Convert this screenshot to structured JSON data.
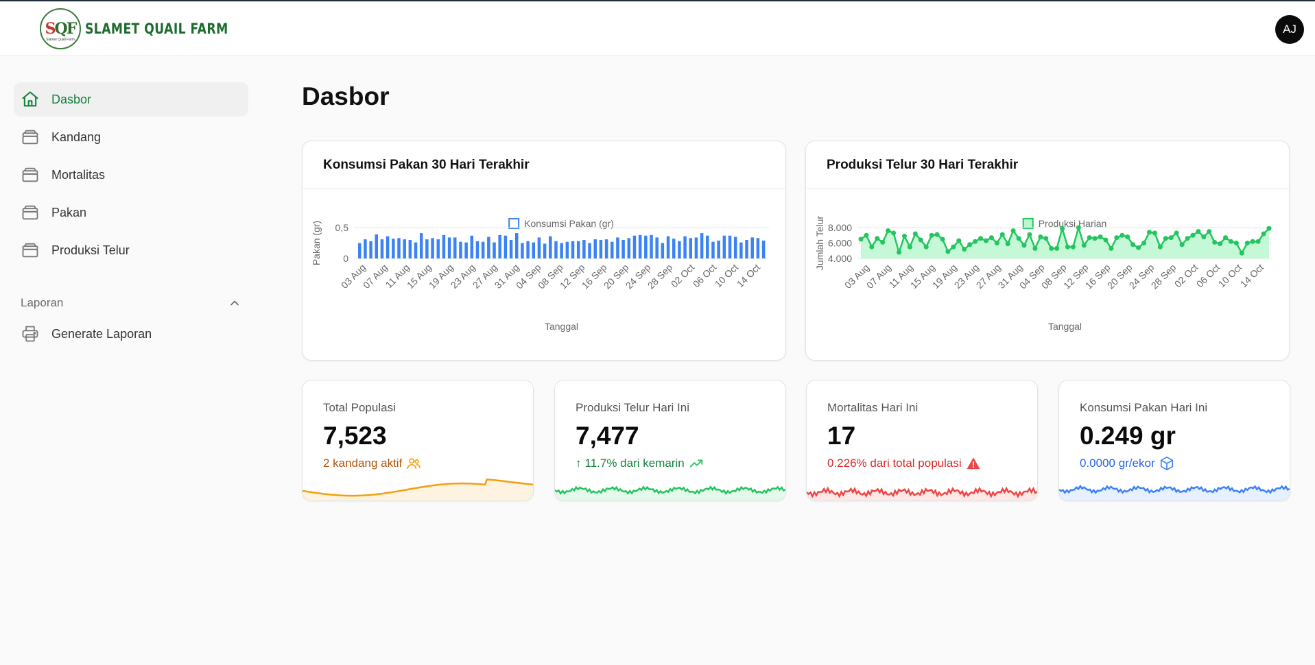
{
  "app": {
    "name": "SLAMET QUAIL FARM",
    "logo_initials": "SQF",
    "logo_tagline": "Slamet Quail Farm"
  },
  "user": {
    "initials": "AJ"
  },
  "sidebar": {
    "items": [
      {
        "label": "Dasbor",
        "icon": "home-icon",
        "active": true
      },
      {
        "label": "Kandang",
        "icon": "cage-icon"
      },
      {
        "label": "Mortalitas",
        "icon": "cage-icon"
      },
      {
        "label": "Pakan",
        "icon": "cage-icon"
      },
      {
        "label": "Produksi Telur",
        "icon": "cage-icon"
      }
    ],
    "section": {
      "label": "Laporan",
      "expanded": true
    },
    "report_items": [
      {
        "label": "Generate Laporan",
        "icon": "printer-icon"
      }
    ]
  },
  "page": {
    "title": "Dasbor"
  },
  "colors": {
    "accent_green": "#15803d",
    "blue": "#3b82f6",
    "green": "#22c55e",
    "orange": "#f59e0b",
    "red": "#ef4444"
  },
  "chart_data": [
    {
      "type": "bar",
      "title": "Konsumsi Pakan 30 Hari Terakhir",
      "legend": "Konsumsi Pakan (gr)",
      "legend_position": "top",
      "xlabel": "Tanggal",
      "ylabel": "Pakan (gr)",
      "ylim": [
        0,
        0.5
      ],
      "yticks": [
        "0",
        "0,5"
      ],
      "xticks": [
        "03 Aug",
        "07 Aug",
        "11 Aug",
        "15 Aug",
        "19 Aug",
        "23 Aug",
        "27 Aug",
        "31 Aug",
        "04 Sep",
        "08 Sep",
        "12 Sep",
        "16 Sep",
        "20 Sep",
        "24 Sep",
        "28 Sep",
        "02 Oct",
        "06 Oct",
        "10 Oct",
        "14 Oct"
      ],
      "color": "#3b82f6",
      "values": [
        0.25,
        0.31,
        0.28,
        0.39,
        0.31,
        0.36,
        0.32,
        0.33,
        0.31,
        0.3,
        0.26,
        0.41,
        0.31,
        0.33,
        0.31,
        0.38,
        0.34,
        0.34,
        0.27,
        0.26,
        0.37,
        0.28,
        0.27,
        0.35,
        0.26,
        0.38,
        0.37,
        0.3,
        0.41,
        0.25,
        0.28,
        0.26,
        0.34,
        0.24,
        0.36,
        0.28,
        0.25,
        0.27,
        0.28,
        0.28,
        0.3,
        0.25,
        0.31,
        0.3,
        0.31,
        0.27,
        0.34,
        0.3,
        0.33,
        0.37,
        0.38,
        0.37,
        0.38,
        0.34,
        0.25,
        0.36,
        0.32,
        0.28,
        0.36,
        0.33,
        0.34,
        0.41,
        0.37,
        0.27,
        0.29,
        0.37,
        0.37,
        0.35,
        0.26,
        0.3,
        0.34,
        0.33,
        0.29
      ]
    },
    {
      "type": "area",
      "title": "Produksi Telur 30 Hari Terakhir",
      "legend": "Produksi Harian",
      "legend_position": "top",
      "xlabel": "Tanggal",
      "ylabel": "Jumlah Telur",
      "ylim": [
        4000,
        8000
      ],
      "yticks": [
        "4.000",
        "6.000",
        "8.000"
      ],
      "xticks": [
        "03 Aug",
        "07 Aug",
        "11 Aug",
        "15 Aug",
        "19 Aug",
        "23 Aug",
        "27 Aug",
        "31 Aug",
        "04 Sep",
        "08 Sep",
        "12 Sep",
        "16 Sep",
        "20 Sep",
        "24 Sep",
        "28 Sep",
        "02 Oct",
        "06 Oct",
        "10 Oct",
        "14 Oct"
      ],
      "color": "#22c55e",
      "values": [
        6500,
        7000,
        5500,
        6600,
        6100,
        7600,
        7300,
        4800,
        6900,
        5500,
        7200,
        6400,
        5500,
        7000,
        7100,
        6500,
        4900,
        5500,
        6300,
        5200,
        5800,
        6200,
        6600,
        6300,
        6700,
        6000,
        7100,
        5900,
        7600,
        6600,
        5700,
        7100,
        5300,
        6800,
        6600,
        5300,
        5300,
        7900,
        5500,
        5500,
        8000,
        5700,
        6700,
        6600,
        6800,
        6400,
        5300,
        6700,
        7000,
        6800,
        5800,
        5400,
        6000,
        7400,
        7300,
        5500,
        6600,
        6700,
        7300,
        5800,
        6600,
        7000,
        7500,
        6800,
        7500,
        6100,
        5900,
        6700,
        6200,
        6000,
        4700,
        6000,
        6200,
        6200,
        7200,
        7900
      ]
    }
  ],
  "stats": [
    {
      "label": "Total Populasi",
      "value": "7,523",
      "sub": "2 kandang aktif",
      "sub_icon": "users-icon",
      "color": "#f59e0b",
      "sub_color": "#b45309"
    },
    {
      "label": "Produksi Telur Hari Ini",
      "value": "7,477",
      "sub_arrow": "↑",
      "sub": "11.7% dari kemarin",
      "sub_icon": "trending-up-icon",
      "color": "#22c55e",
      "sub_color": "#15803d"
    },
    {
      "label": "Mortalitas Hari Ini",
      "value": "17",
      "sub": "0.226% dari total populasi",
      "sub_icon": "warning-icon",
      "color": "#ef4444",
      "sub_color": "#dc2626"
    },
    {
      "label": "Konsumsi Pakan Hari Ini",
      "value": "0.249 gr",
      "sub": "0.0000 gr/ekor",
      "sub_icon": "box-icon",
      "color": "#3b82f6",
      "sub_color": "#2563eb"
    }
  ]
}
